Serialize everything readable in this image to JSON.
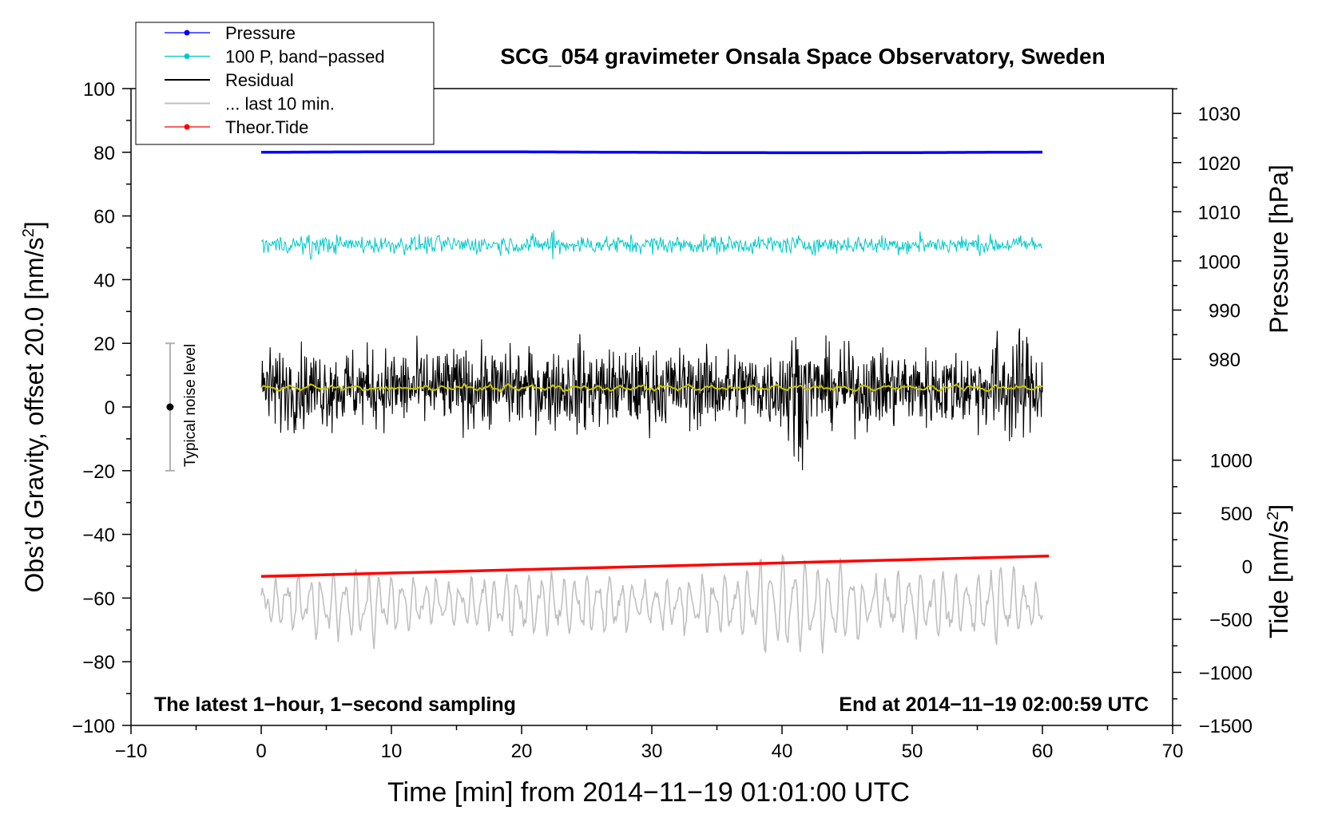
{
  "chart_data": {
    "type": "line",
    "title": "SCG_054 gravimeter Onsala Space Observatory, Sweden",
    "xlabel": "Time [min] from 2014−11−19 01:01:00 UTC",
    "ylabel_left": "Obs’d Gravity, offset 20.0 [nm/s",
    "ylabel_left_sup": "2",
    "ylabel_left_end": "]",
    "ylabel_pressure": "Pressure [hPa]",
    "ylabel_tide": "Tide [nm/s",
    "ylabel_tide_sup": "2",
    "ylabel_tide_end": "]",
    "xlim": [
      -10,
      70
    ],
    "ylim": [
      -100,
      100
    ],
    "x_ticks": [
      {
        "v": -10,
        "label": "−10"
      },
      {
        "v": 0,
        "label": "0"
      },
      {
        "v": 10,
        "label": "10"
      },
      {
        "v": 20,
        "label": "20"
      },
      {
        "v": 30,
        "label": "30"
      },
      {
        "v": 40,
        "label": "40"
      },
      {
        "v": 50,
        "label": "50"
      },
      {
        "v": 60,
        "label": "60"
      },
      {
        "v": 70,
        "label": "70"
      }
    ],
    "y_ticks": [
      {
        "v": 100,
        "label": "100"
      },
      {
        "v": 80,
        "label": "80"
      },
      {
        "v": 60,
        "label": "60"
      },
      {
        "v": 40,
        "label": "40"
      },
      {
        "v": 20,
        "label": "20"
      },
      {
        "v": 0,
        "label": "0"
      },
      {
        "v": -20,
        "label": "−20"
      },
      {
        "v": -40,
        "label": "−40"
      },
      {
        "v": -60,
        "label": "−60"
      },
      {
        "v": -80,
        "label": "−80"
      },
      {
        "v": -100,
        "label": "−100"
      }
    ],
    "pressure_axis": {
      "ticks": [
        {
          "hpa": 1030,
          "y": 92.2,
          "label": "1030"
        },
        {
          "hpa": 1020,
          "y": 76.7,
          "label": "1020"
        },
        {
          "hpa": 1010,
          "y": 61.3,
          "label": "1010"
        },
        {
          "hpa": 1000,
          "y": 45.8,
          "label": "1000"
        },
        {
          "hpa": 990,
          "y": 30.4,
          "label": "990"
        },
        {
          "hpa": 980,
          "y": 15.0,
          "label": "980"
        }
      ]
    },
    "tide_axis": {
      "ticks": [
        {
          "nms2": 1000,
          "y": -16.7,
          "label": "1000"
        },
        {
          "nms2": 500,
          "y": -33.3,
          "label": "500"
        },
        {
          "nms2": 0,
          "y": -50.0,
          "label": "0"
        },
        {
          "nms2": -500,
          "y": -66.7,
          "label": "−500"
        },
        {
          "nms2": -1000,
          "y": -83.3,
          "label": "−1000"
        },
        {
          "nms2": -1500,
          "y": -100.0,
          "label": "−1500"
        }
      ]
    },
    "series": [
      {
        "name": "Pressure",
        "color": "#0000ff",
        "x_range": [
          0,
          60
        ],
        "level": 80.0,
        "note": "flat near 1022 hPa"
      },
      {
        "name": "100 P, band−passed",
        "color": "#00c8c8",
        "x_range": [
          0,
          60
        ],
        "level": 51.0,
        "amplitude": 3.5
      },
      {
        "name": "Residual",
        "color": "#000000",
        "x_range": [
          0,
          60
        ],
        "level": 6.0,
        "amplitude": 20
      },
      {
        "name": "... last 10 min.",
        "color": "#c0c0c0",
        "x_range": [
          0,
          60
        ],
        "level": -62.0,
        "amplitude": 11
      },
      {
        "name": "Theor.Tide",
        "color": "#ff0000",
        "x": [
          0,
          60.5
        ],
        "y": [
          -53.2,
          -46.8
        ]
      }
    ],
    "smoothed_residual": {
      "color": "#c8c800",
      "level": 6.0
    },
    "noise_level": {
      "label": "Typical noise level",
      "x": -7,
      "center": 0,
      "range": [
        -20,
        20
      ]
    },
    "annotations": {
      "left": "The latest 1−hour, 1−second sampling",
      "right": "End at 2014−11−19 02:00:59 UTC"
    },
    "legend": {
      "position": "top-left, outside plot"
    }
  }
}
